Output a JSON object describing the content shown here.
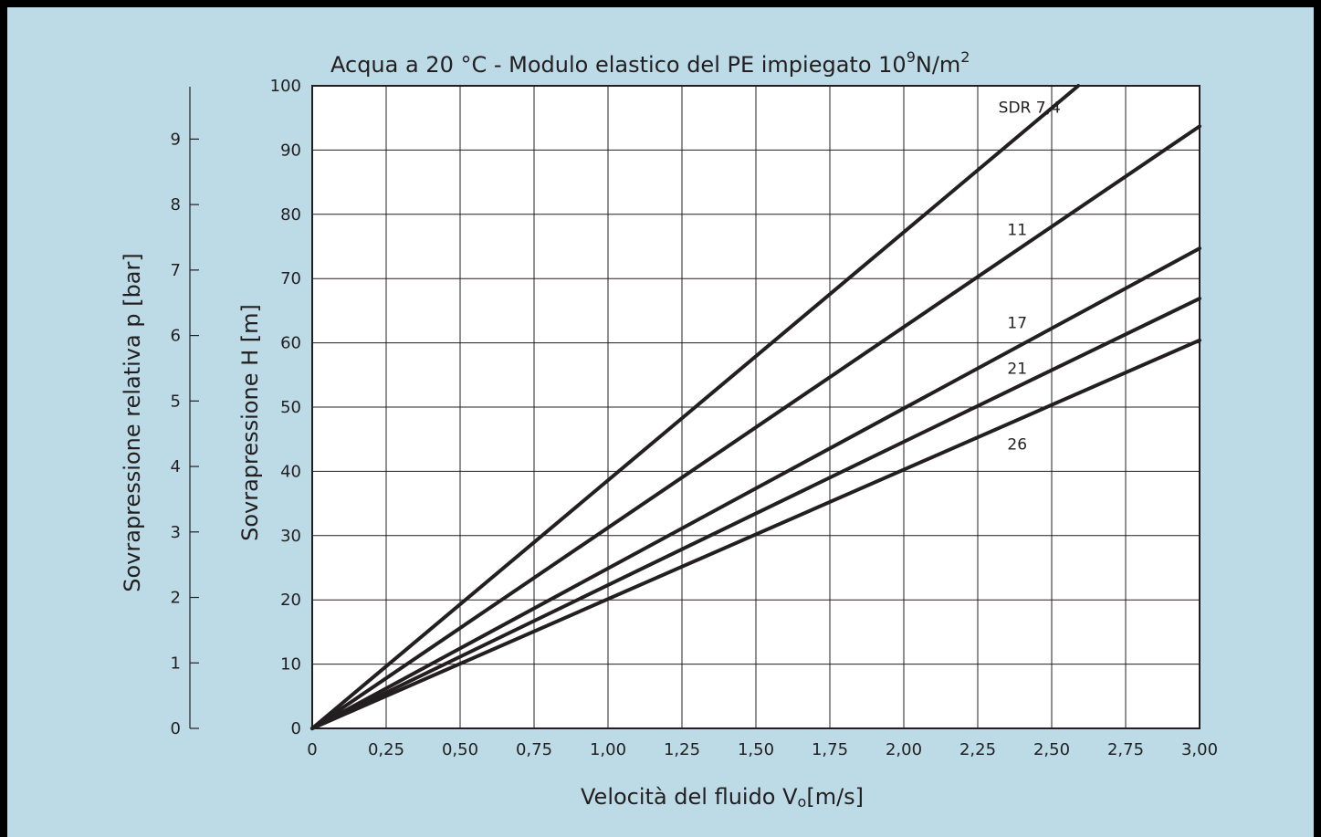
{
  "colors": {
    "background": "#bcdbe6",
    "frame": "#000000",
    "plot_area": "#ffffff",
    "grid": "#231f20",
    "lines": "#231f20"
  },
  "chart_data": {
    "type": "line",
    "title": "Acqua a 20 °C - Modulo elastico del PE impiegato 10",
    "title_exp1": "9",
    "title_mid": "N/m",
    "title_exp2": "2",
    "xlabel": "Velocità del fluido V",
    "xlabel_sub": "o",
    "xlabel_unit": "[m/s]",
    "ylabel": "Sovrapressione   H [m]",
    "y2label": "Sovrapressione relativa   p [bar]",
    "xlim": [
      0,
      3
    ],
    "ylim": [
      0,
      100
    ],
    "y2lim": [
      0,
      9.8
    ],
    "x_ticks": [
      0,
      0.25,
      0.5,
      0.75,
      1,
      1.25,
      1.5,
      1.75,
      2,
      2.25,
      2.5,
      2.75,
      3
    ],
    "x_tick_labels": [
      "0",
      "0,25",
      "0,50",
      "0,75",
      "1,00",
      "1,25",
      "1,50",
      "1,75",
      "2,00",
      "2,25",
      "2,50",
      "2,75",
      "3,00"
    ],
    "y_ticks": [
      0,
      10,
      20,
      30,
      40,
      50,
      60,
      70,
      80,
      90,
      100
    ],
    "y_tick_labels": [
      "0",
      "10",
      "20",
      "30",
      "40",
      "50",
      "60",
      "70",
      "80",
      "90",
      "100"
    ],
    "y2_ticks": [
      0,
      1,
      2,
      3,
      4,
      5,
      6,
      7,
      8,
      9
    ],
    "y2_tick_labels": [
      "0",
      "1",
      "2",
      "3",
      "4",
      "5",
      "6",
      "7",
      "8",
      "9"
    ],
    "grid": true,
    "series": [
      {
        "name": "SDR 7,4",
        "x": [
          0,
          2.59
        ],
        "y": [
          0,
          100
        ],
        "label_at": [
          2.32,
          95.8
        ]
      },
      {
        "name": "11",
        "x": [
          0,
          3.0
        ],
        "y": [
          0,
          93.7
        ],
        "label_at": [
          2.35,
          76.8
        ]
      },
      {
        "name": "17",
        "x": [
          0,
          3.0
        ],
        "y": [
          0,
          74.7
        ],
        "label_at": [
          2.35,
          62.3
        ]
      },
      {
        "name": "21",
        "x": [
          0,
          3.0
        ],
        "y": [
          0,
          66.9
        ],
        "label_at": [
          2.35,
          55.2
        ]
      },
      {
        "name": "26",
        "x": [
          0,
          3.0
        ],
        "y": [
          0,
          60.4
        ],
        "label_at": [
          2.35,
          43.4
        ]
      }
    ]
  }
}
